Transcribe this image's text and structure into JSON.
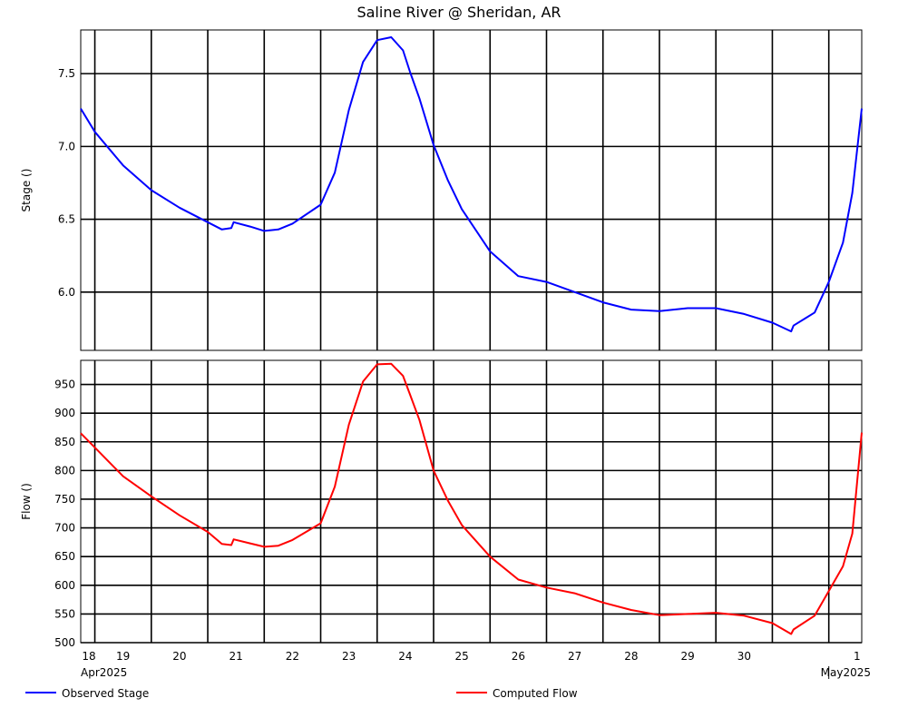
{
  "chart_data": {
    "type": "line",
    "title": "Saline River @ Sheridan, AR",
    "x_tick_labels": [
      "18",
      "19",
      "20",
      "21",
      "22",
      "23",
      "24",
      "25",
      "26",
      "27",
      "28",
      "29",
      "30",
      "1"
    ],
    "month_labels": [
      "Apr2025",
      "May2025"
    ],
    "x_range": [
      "2025-04-17T18:00",
      "2025-05-01T14:00"
    ],
    "grid": true,
    "panels": [
      {
        "name": "stage",
        "ylabel": "Stage ()",
        "ylim": [
          5.6,
          7.8
        ],
        "yticks": [
          6.0,
          6.5,
          7.0,
          7.5
        ],
        "ytick_labels": [
          "6.0",
          "6.5",
          "7.0",
          "7.5"
        ],
        "series": [
          {
            "name": "Observed Stage",
            "color": "#0000ff",
            "x": [
              "2025-04-17T18:00",
              "2025-04-18T00:00",
              "2025-04-18T12:00",
              "2025-04-19T00:00",
              "2025-04-19T12:00",
              "2025-04-20T00:00",
              "2025-04-20T06:00",
              "2025-04-20T10:00",
              "2025-04-20T11:00",
              "2025-04-20T18:00",
              "2025-04-21T00:00",
              "2025-04-21T06:00",
              "2025-04-21T12:00",
              "2025-04-22T00:00",
              "2025-04-22T06:00",
              "2025-04-22T12:00",
              "2025-04-22T18:00",
              "2025-04-23T00:00",
              "2025-04-23T06:00",
              "2025-04-23T11:00",
              "2025-04-23T14:00",
              "2025-04-23T18:00",
              "2025-04-24T00:00",
              "2025-04-24T06:00",
              "2025-04-24T12:00",
              "2025-04-25T00:00",
              "2025-04-25T12:00",
              "2025-04-26T00:00",
              "2025-04-26T12:00",
              "2025-04-27T00:00",
              "2025-04-27T12:00",
              "2025-04-28T00:00",
              "2025-04-28T12:00",
              "2025-04-29T00:00",
              "2025-04-29T12:00",
              "2025-04-30T00:00",
              "2025-04-30T08:00",
              "2025-04-30T09:00",
              "2025-04-30T18:00",
              "2025-05-01T00:00",
              "2025-05-01T06:00",
              "2025-05-01T10:00",
              "2025-05-01T14:00"
            ],
            "values": [
              7.26,
              7.1,
              6.87,
              6.7,
              6.58,
              6.48,
              6.43,
              6.44,
              6.48,
              6.45,
              6.42,
              6.43,
              6.47,
              6.6,
              6.82,
              7.25,
              7.58,
              7.73,
              7.75,
              7.66,
              7.51,
              7.33,
              7.01,
              6.77,
              6.57,
              6.28,
              6.11,
              6.07,
              6.0,
              5.93,
              5.88,
              5.87,
              5.89,
              5.89,
              5.85,
              5.79,
              5.73,
              5.77,
              5.86,
              6.07,
              6.34,
              6.68,
              7.26
            ]
          }
        ]
      },
      {
        "name": "flow",
        "ylabel": "Flow ()",
        "ylim": [
          500,
          992
        ],
        "yticks": [
          500,
          550,
          600,
          650,
          700,
          750,
          800,
          850,
          900,
          950
        ],
        "ytick_labels": [
          "500",
          "550",
          "600",
          "650",
          "700",
          "750",
          "800",
          "850",
          "900",
          "950"
        ],
        "series": [
          {
            "name": "Computed Flow",
            "color": "#ff0000",
            "x": [
              "2025-04-17T18:00",
              "2025-04-18T00:00",
              "2025-04-18T12:00",
              "2025-04-19T00:00",
              "2025-04-19T12:00",
              "2025-04-20T00:00",
              "2025-04-20T06:00",
              "2025-04-20T10:00",
              "2025-04-20T11:00",
              "2025-04-20T18:00",
              "2025-04-21T00:00",
              "2025-04-21T06:00",
              "2025-04-21T12:00",
              "2025-04-22T00:00",
              "2025-04-22T06:00",
              "2025-04-22T12:00",
              "2025-04-22T18:00",
              "2025-04-23T00:00",
              "2025-04-23T06:00",
              "2025-04-23T11:00",
              "2025-04-23T14:00",
              "2025-04-23T18:00",
              "2025-04-24T00:00",
              "2025-04-24T06:00",
              "2025-04-24T12:00",
              "2025-04-25T00:00",
              "2025-04-25T12:00",
              "2025-04-26T00:00",
              "2025-04-26T12:00",
              "2025-04-27T00:00",
              "2025-04-27T12:00",
              "2025-04-28T00:00",
              "2025-04-28T12:00",
              "2025-04-29T00:00",
              "2025-04-29T12:00",
              "2025-04-30T00:00",
              "2025-04-30T08:00",
              "2025-04-30T09:00",
              "2025-04-30T18:00",
              "2025-05-01T00:00",
              "2025-05-01T06:00",
              "2025-05-01T10:00",
              "2025-05-01T14:00"
            ],
            "values": [
              865,
              840,
              790,
              755,
              722,
              693,
              672,
              670,
              680,
              673,
              667,
              669,
              679,
              708,
              772,
              880,
              955,
              985,
              986,
              965,
              932,
              888,
              800,
              748,
              705,
              650,
              610,
              596,
              586,
              570,
              557,
              548,
              550,
              552,
              547,
              534,
              515,
              523,
              547,
              590,
              633,
              690,
              866
            ]
          }
        ]
      }
    ],
    "legend_position": "bottom"
  }
}
